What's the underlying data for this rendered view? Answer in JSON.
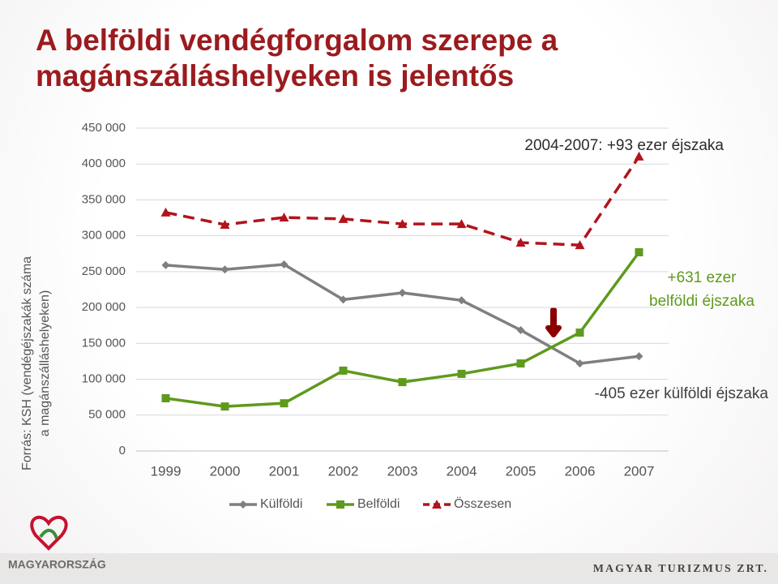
{
  "chart_data": {
    "type": "line",
    "title": "A belföldi vendégforgalom szerepe a magánszálláshelyeken is jelentős",
    "y_label": [
      "Forrás: KSH  (vendégéjszakák száma",
      "a magánszálláshelyeken)"
    ],
    "categories": [
      "1999",
      "2000",
      "2001",
      "2002",
      "2003",
      "2004",
      "2005",
      "2006",
      "2007"
    ],
    "series": [
      {
        "name": "Külföldi",
        "color": "#7f7f7f",
        "marker": "diamond",
        "dashed": false,
        "values": [
          259000,
          253000,
          260000,
          211000,
          220500,
          210000,
          168500,
          122000,
          132000
        ]
      },
      {
        "name": "Belföldi",
        "color": "#5e9a1c",
        "marker": "square",
        "dashed": false,
        "values": [
          73500,
          62000,
          66500,
          112000,
          96000,
          107500,
          122000,
          165000,
          277000
        ]
      },
      {
        "name": "Összesen",
        "color": "#b0141d",
        "marker": "triangle",
        "dashed": true,
        "values": [
          332500,
          315500,
          325500,
          323500,
          316500,
          316500,
          290500,
          287000,
          410500
        ]
      }
    ],
    "ylim": [
      0,
      450000
    ],
    "yticks": [
      {
        "value": 0,
        "label": "0"
      },
      {
        "value": 50000,
        "label": "50 000"
      },
      {
        "value": 100000,
        "label": "100 000"
      },
      {
        "value": 150000,
        "label": "150 000"
      },
      {
        "value": 200000,
        "label": "200 000"
      },
      {
        "value": 250000,
        "label": "250 000"
      },
      {
        "value": 300000,
        "label": "300 000"
      },
      {
        "value": 350000,
        "label": "350 000"
      },
      {
        "value": 400000,
        "label": "400 000"
      },
      {
        "value": 450000,
        "label": "450 000"
      }
    ],
    "grid": true,
    "legend": "bottom",
    "annotations": [
      {
        "lines": [
          "2004-2007: +93 ezer éjszaka"
        ],
        "color": "#2b2b2b"
      },
      {
        "lines": [
          "+631 ezer",
          "belföldi éjszaka"
        ],
        "color": "#5e9a1c"
      },
      {
        "lines": [
          "-405 ezer külföldi éjszaka"
        ],
        "color": "#404040"
      }
    ]
  },
  "footer": {
    "left": "MAGYARORSZÁG",
    "right": "MAGYAR TURIZMUS ZRT."
  }
}
